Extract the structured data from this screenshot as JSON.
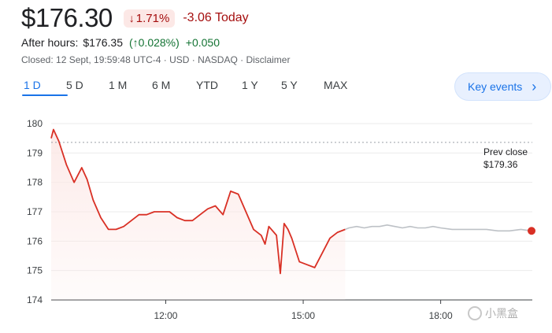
{
  "quote": {
    "price": "$176.30",
    "change_pct": "1.71%",
    "change_arrow": "↓",
    "change_today": "-3.06 Today",
    "after_hours_label": "After hours:",
    "after_hours_price": "$176.35",
    "after_hours_pct": "(↑0.028%)",
    "after_hours_abs": "+0.050",
    "meta": "Closed: 12 Sept, 19:59:48 UTC-4 · USD · NASDAQ · Disclaimer",
    "prev_close_label": "Prev close",
    "prev_close_value": "$179.36"
  },
  "tabs": [
    {
      "label": "1 D",
      "active": true
    },
    {
      "label": "5 D",
      "active": false
    },
    {
      "label": "1 M",
      "active": false
    },
    {
      "label": "6 M",
      "active": false
    },
    {
      "label": "YTD",
      "active": false
    },
    {
      "label": "1 Y",
      "active": false
    },
    {
      "label": "5 Y",
      "active": false
    },
    {
      "label": "MAX",
      "active": false
    }
  ],
  "key_events": {
    "label": "Key events",
    "icon": "chevron-right-icon"
  },
  "watermark": {
    "text": "小黑盒"
  },
  "colors": {
    "down": "#d93025",
    "after_hours_line": "#bdc1c6",
    "accent": "#1a73e8",
    "up": "#137333"
  },
  "chart_data": {
    "type": "line",
    "ylim": [
      174,
      180
    ],
    "y_ticks": [
      "180",
      "179",
      "178",
      "177",
      "176",
      "175",
      "174"
    ],
    "x_ticks": [
      "12:00",
      "15:00",
      "18:00"
    ],
    "prev_close": 179.36,
    "series": [
      {
        "session": "regular",
        "x": [
          "09:30",
          "09:33",
          "09:40",
          "09:50",
          "10:00",
          "10:10",
          "10:17",
          "10:25",
          "10:35",
          "10:45",
          "10:55",
          "11:05",
          "11:15",
          "11:25",
          "11:35",
          "11:45",
          "11:55",
          "12:05",
          "12:15",
          "12:25",
          "12:35",
          "12:45",
          "12:55",
          "13:05",
          "13:15",
          "13:25",
          "13:35",
          "13:45",
          "13:55",
          "14:05",
          "14:10",
          "14:15",
          "14:25",
          "14:30",
          "14:35",
          "14:40",
          "14:45",
          "14:55",
          "15:05",
          "15:15",
          "15:25",
          "15:35",
          "15:45",
          "15:55"
        ],
        "y": [
          179.5,
          179.8,
          179.4,
          178.6,
          178.0,
          178.5,
          178.1,
          177.4,
          176.8,
          176.4,
          176.4,
          176.5,
          176.7,
          176.9,
          176.9,
          177.0,
          177.0,
          177.0,
          176.8,
          176.7,
          176.7,
          176.9,
          177.1,
          177.2,
          176.9,
          177.7,
          177.6,
          177.0,
          176.4,
          176.2,
          175.9,
          176.5,
          176.2,
          174.9,
          176.6,
          176.4,
          176.1,
          175.3,
          175.2,
          175.1,
          175.6,
          176.1,
          176.3,
          176.4
        ]
      },
      {
        "session": "after_hours",
        "x": [
          "16:00",
          "16:10",
          "16:20",
          "16:30",
          "16:40",
          "16:50",
          "17:00",
          "17:10",
          "17:20",
          "17:30",
          "17:40",
          "17:50",
          "18:00",
          "18:15",
          "18:30",
          "18:45",
          "19:00",
          "19:15",
          "19:30",
          "19:45",
          "19:59"
        ],
        "y": [
          176.45,
          176.5,
          176.45,
          176.5,
          176.5,
          176.55,
          176.5,
          176.45,
          176.5,
          176.45,
          176.45,
          176.5,
          176.45,
          176.4,
          176.4,
          176.4,
          176.4,
          176.35,
          176.35,
          176.4,
          176.35
        ]
      }
    ]
  }
}
